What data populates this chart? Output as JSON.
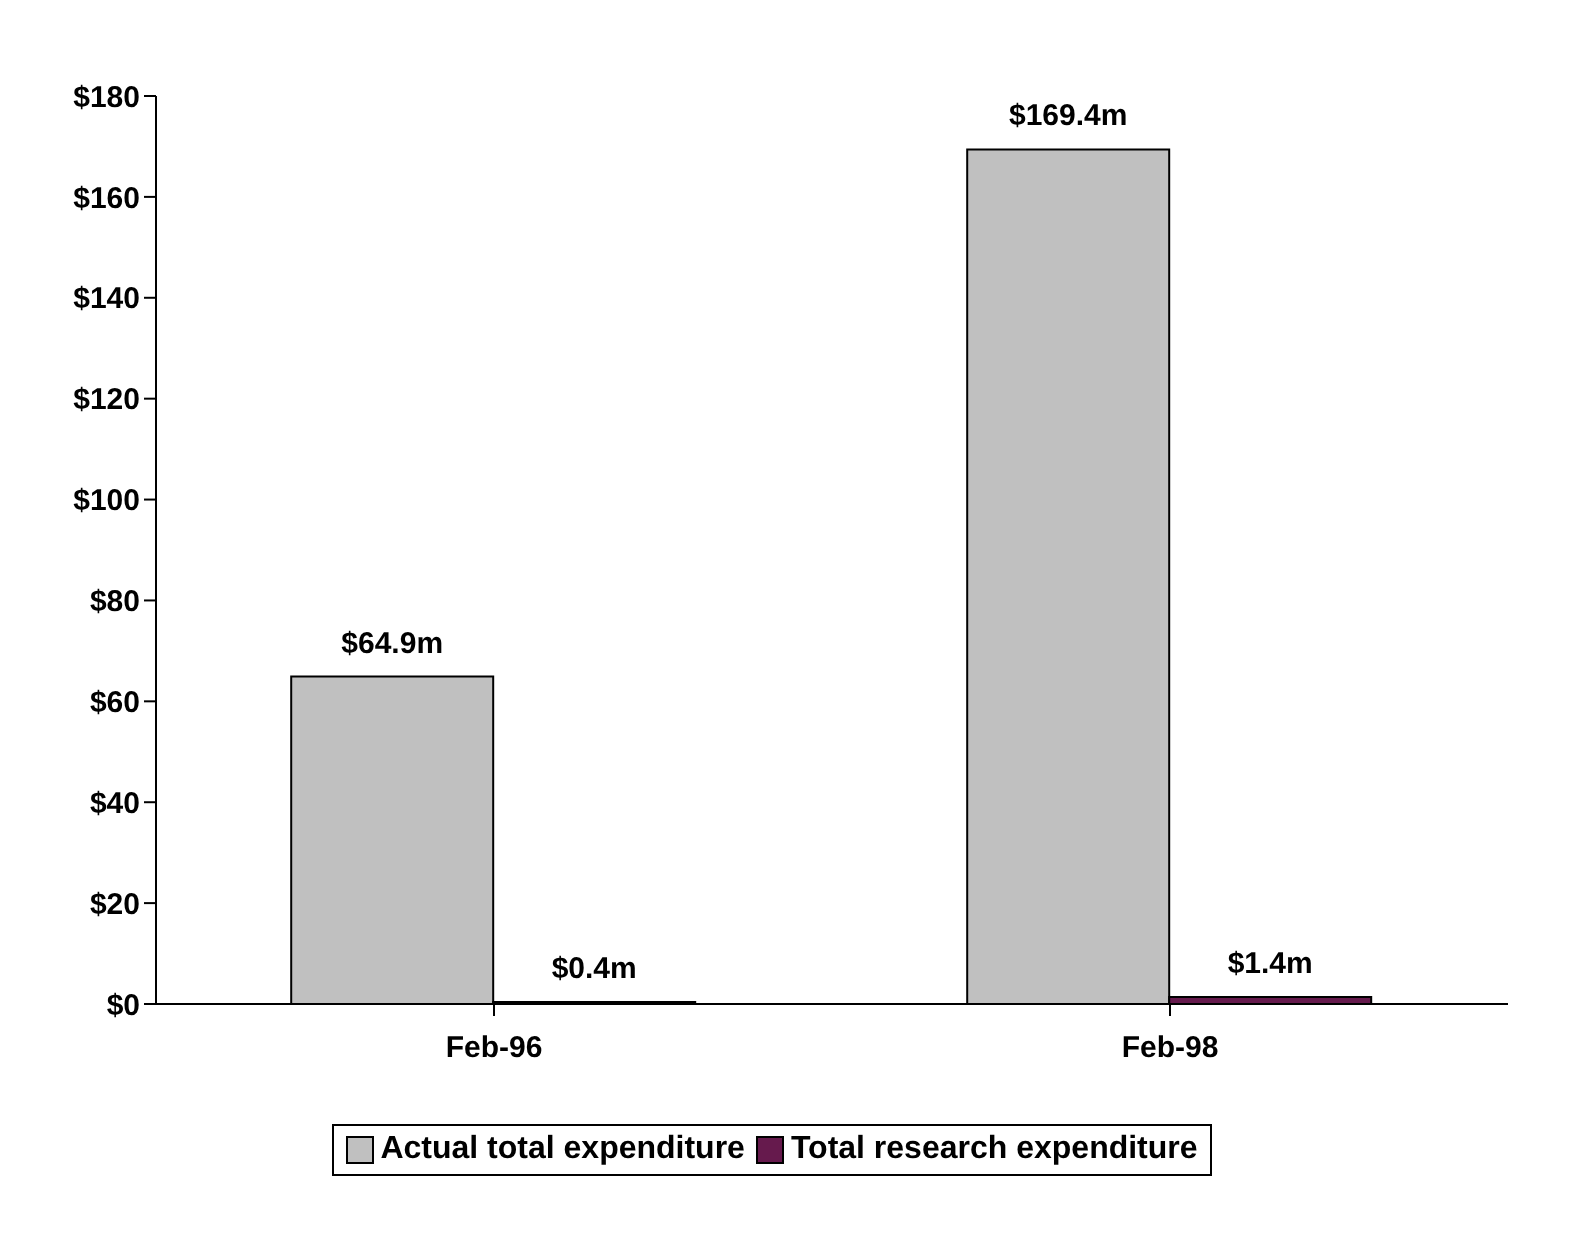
{
  "chart_data": {
    "type": "bar",
    "categories": [
      "Feb-96",
      "Feb-98"
    ],
    "series": [
      {
        "name": "Actual total expenditure",
        "color": "#c0c0c0",
        "values": [
          64.9,
          169.4
        ],
        "value_labels": [
          "$64.9m",
          "$169.4m"
        ]
      },
      {
        "name": "Total research expenditure",
        "color": "#661a4d",
        "values": [
          0.4,
          1.4
        ],
        "value_labels": [
          "$0.4m",
          "$1.4m"
        ]
      }
    ],
    "ylim": [
      0,
      180
    ],
    "yticks": [
      {
        "value": 0,
        "label": "$0"
      },
      {
        "value": 20,
        "label": "$20"
      },
      {
        "value": 40,
        "label": "$40"
      },
      {
        "value": 60,
        "label": "$60"
      },
      {
        "value": 80,
        "label": "$80"
      },
      {
        "value": 100,
        "label": "$100"
      },
      {
        "value": 120,
        "label": "$120"
      },
      {
        "value": 140,
        "label": "$140"
      },
      {
        "value": 160,
        "label": "$160"
      },
      {
        "value": 180,
        "label": "$180"
      }
    ],
    "grid": false,
    "legend": "bottom"
  }
}
